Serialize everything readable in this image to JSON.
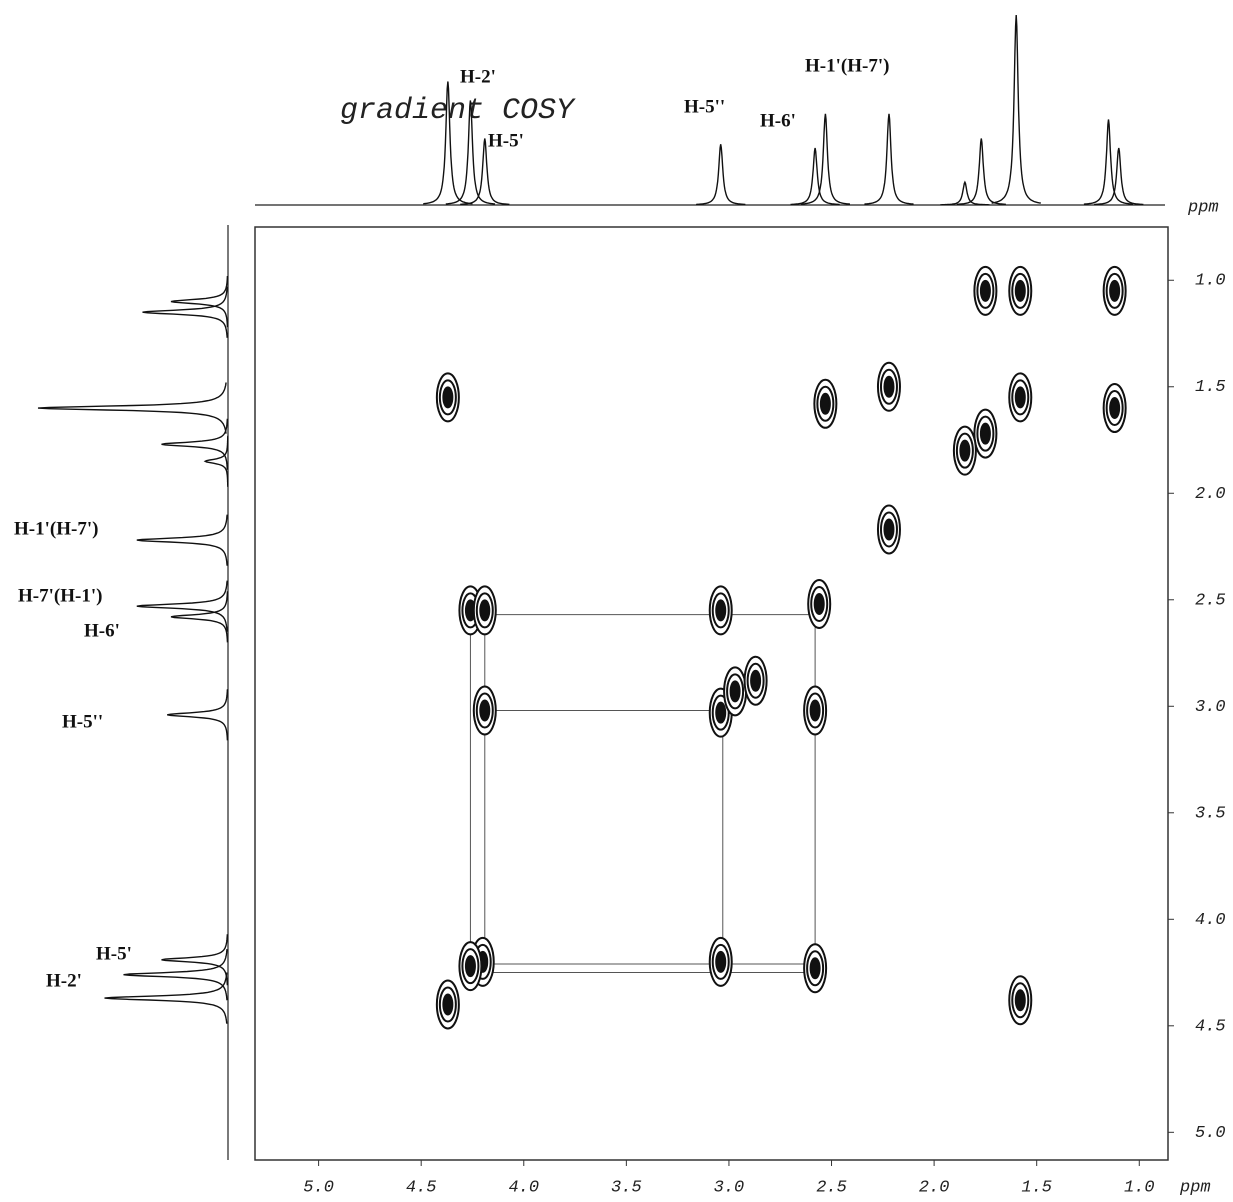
{
  "chart_data": {
    "type": "cosy",
    "title": "gradient COSY",
    "xlabel": "ppm",
    "ylabel": "ppm",
    "xlim": [
      5.31,
      0.86
    ],
    "ylim": [
      0.75,
      5.13
    ],
    "xticks": [
      {
        "value": 5,
        "label": "5.0"
      },
      {
        "value": 4.5,
        "label": "4.5"
      },
      {
        "value": 4,
        "label": "4.0"
      },
      {
        "value": 3.5,
        "label": "3.5"
      },
      {
        "value": 3,
        "label": "3.0"
      },
      {
        "value": 2.5,
        "label": "2.5"
      },
      {
        "value": 2,
        "label": "2.0"
      },
      {
        "value": 1.5,
        "label": "1.5"
      },
      {
        "value": 1,
        "label": "1.0"
      }
    ],
    "yticks": [
      {
        "value": 1,
        "label": "1.0"
      },
      {
        "value": 1.5,
        "label": "1.5"
      },
      {
        "value": 2,
        "label": "2.0"
      },
      {
        "value": 2.5,
        "label": "2.5"
      },
      {
        "value": 3,
        "label": "3.0"
      },
      {
        "value": 3.5,
        "label": "3.5"
      },
      {
        "value": 4,
        "label": "4.0"
      },
      {
        "value": 4.5,
        "label": "4.5"
      },
      {
        "value": 5,
        "label": "5.0"
      }
    ],
    "peaks": {
      "x": [
        1.12,
        1.58,
        1.75,
        2.22,
        2.56,
        3.04,
        4.2,
        4.37,
        4.37,
        2.53,
        2.22,
        1.75,
        1.58,
        1.12,
        1.85,
        4.26,
        4.19,
        3.04,
        4.19,
        2.58,
        4.26,
        3.04,
        2.58,
        1.58,
        2.97,
        2.87
      ],
      "y": [
        1.05,
        1.55,
        1.72,
        2.17,
        2.52,
        3.03,
        4.2,
        4.4,
        1.55,
        1.58,
        1.5,
        1.05,
        1.05,
        1.6,
        1.8,
        2.55,
        2.55,
        2.55,
        3.02,
        3.02,
        4.22,
        4.2,
        4.23,
        4.38,
        2.93,
        2.88
      ]
    },
    "correlations": [
      {
        "x": [
          4.26,
          4.26
        ],
        "y": [
          2.57,
          4.26
        ]
      },
      {
        "x": [
          4.19,
          4.19
        ],
        "y": [
          2.55,
          4.2
        ]
      },
      {
        "x": [
          3.03,
          3.03
        ],
        "y": [
          3.03,
          4.2
        ]
      },
      {
        "x": [
          2.58,
          2.58
        ],
        "y": [
          2.57,
          4.23
        ]
      },
      {
        "x": [
          4.19,
          2.58
        ],
        "y": [
          2.57,
          2.57
        ]
      },
      {
        "x": [
          4.19,
          3.03
        ],
        "y": [
          3.02,
          3.02
        ]
      },
      {
        "x": [
          4.19,
          2.58
        ],
        "y": [
          4.21,
          4.21
        ]
      },
      {
        "x": [
          4.26,
          2.58
        ],
        "y": [
          4.25,
          4.25
        ]
      }
    ],
    "spectrum": {
      "ppm": [
        4.37,
        4.26,
        4.19,
        3.04,
        2.58,
        2.53,
        2.22,
        1.85,
        1.77,
        1.6,
        1.15,
        1.1
      ],
      "height": [
        0.65,
        0.55,
        0.35,
        0.32,
        0.3,
        0.48,
        0.48,
        0.12,
        0.35,
        1.0,
        0.45,
        0.3
      ]
    },
    "top_labels": [
      "H-2'",
      "H-5'",
      "H-5''",
      "H-6'",
      "H-1'(H-7')"
    ],
    "left_labels": [
      "H-1'(H-7')",
      "H-7'(H-1')",
      "H-6'",
      "H-5''",
      "H-5'",
      "H-2'"
    ]
  }
}
